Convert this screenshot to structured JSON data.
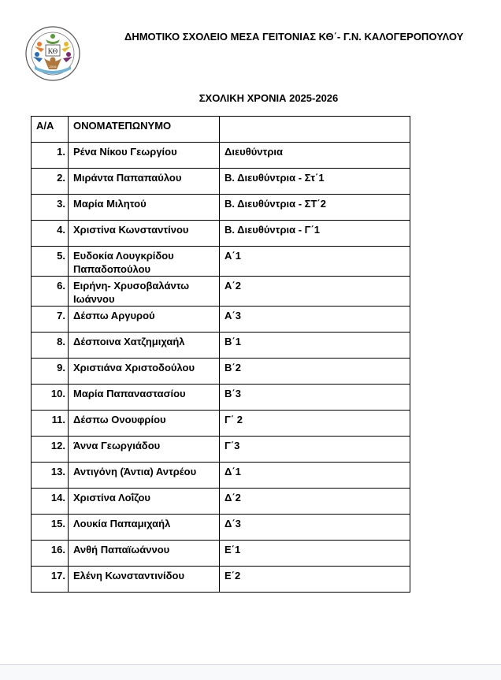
{
  "header": {
    "school_name": "ΔΗΜΟΤΙΚΟ ΣΧΟΛΕΙΟ ΜΕΣΑ ΓΕΙΤΟΝΙΑΣ ΚΘ΄- Γ.Ν. ΚΑΛΟΓΕΡΟΠΟΥΛΟΥ",
    "school_year": "ΣΧΟΛΙΚΗ ΧΡΟΝΙΑ 2025-2026",
    "logo": {
      "initials": "ΚΘ",
      "year": "2016",
      "ring_text": "ΔΗΜΟΤΙΚΟ ΣΧΟΛΕΙΟ ΜΕΣΑ ΓΕΙΤΟΝΙΑΣ ΚΘ΄ Γ.Ν. ΚΑΛΟΓΕΡΟΠΟΥΛΟΥ"
    }
  },
  "table": {
    "headers": [
      "Α/Α",
      "ΟΝΟΜΑΤΕΠΩΝΥΜΟ",
      ""
    ],
    "rows": [
      [
        "1.",
        "Ρένα Νίκου Γεωργίου",
        "Διευθύντρια"
      ],
      [
        "2.",
        "Μιράντα Παπαπαύλου",
        "Β. Διευθύντρια -  Στ΄1"
      ],
      [
        "3.",
        "Μαρία Μιλητού",
        "Β. Διευθύντρια - ΣΤ΄2"
      ],
      [
        "4.",
        "Χριστίνα Κωνσταντίνου",
        "Β. Διευθύντρια -  Γ΄1"
      ],
      [
        "5.",
        "Ευδοκία Λουγκρίδου Παπαδοπούλου",
        "Α΄1"
      ],
      [
        "6.",
        "Ειρήνη- Χρυσοβαλάντω Ιωάννου",
        "Α΄2"
      ],
      [
        "7.",
        "Δέσπω Αργυρού",
        "Α΄3"
      ],
      [
        "8.",
        "Δέσποινα Χατζημιχαήλ",
        "Β΄1"
      ],
      [
        "9.",
        "Χριστιάνα Χριστοδούλου",
        "Β΄2"
      ],
      [
        "10.",
        "Μαρία Παπαναστασίου",
        "Β΄3"
      ],
      [
        "11.",
        "Δέσπω Ονουφρίου",
        "Γ΄ 2"
      ],
      [
        "12.",
        "Άννα Γεωργιάδου",
        "Γ΄3"
      ],
      [
        "13.",
        "Αντιγόνη (Άντια) Αντρέου",
        "Δ΄1"
      ],
      [
        "14.",
        "Χριστίνα Λοΐζου",
        "Δ΄2"
      ],
      [
        "15.",
        "Λουκία Παπαμιχαήλ",
        "Δ΄3"
      ],
      [
        "16.",
        "Ανθή Παπαϊωάννου",
        "Ε΄1"
      ],
      [
        "17.",
        "Ελένη Κωνσταντινίδου",
        "Ε΄2"
      ]
    ]
  }
}
